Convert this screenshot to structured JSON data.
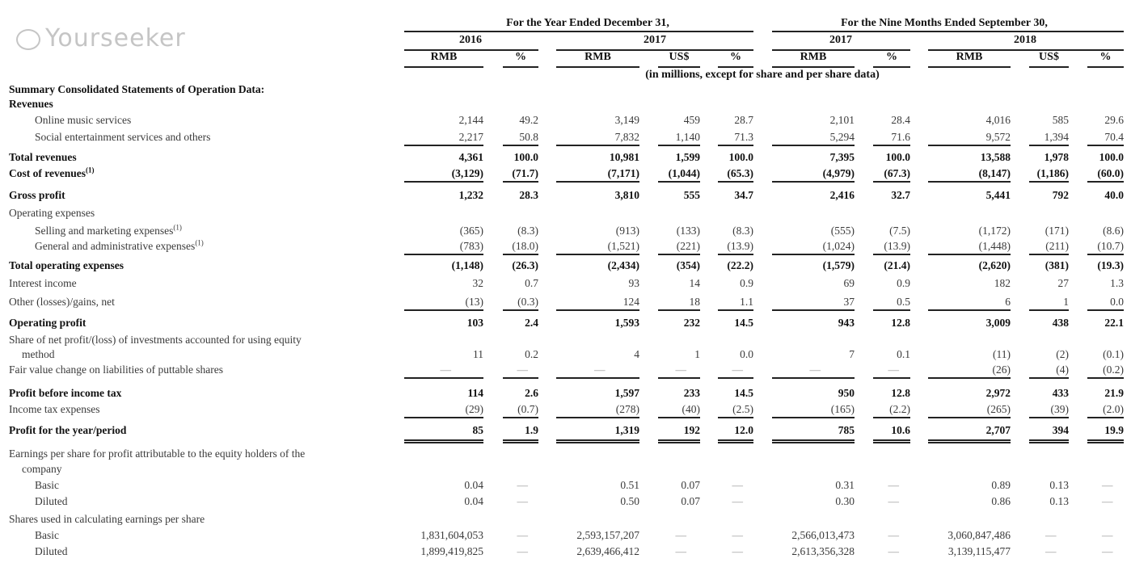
{
  "header": {
    "group_left": "For the Year Ended December 31,",
    "group_right": "For the Nine Months Ended September 30,",
    "years": [
      "2016",
      "2017",
      "2017",
      "2018"
    ],
    "columns": [
      "RMB",
      "%",
      "RMB",
      "US$",
      "%",
      "RMB",
      "%",
      "RMB",
      "US$",
      "%"
    ],
    "units_note": "(in millions, except for share and per share data)"
  },
  "rows": [
    {
      "label": "Summary Consolidated Statements of Operation Data:",
      "bold": true,
      "indent": 0,
      "values": null
    },
    {
      "label": "Revenues",
      "bold": true,
      "indent": 0,
      "values": null
    },
    {
      "label": "Online music services",
      "bold": false,
      "indent": 2,
      "values": [
        "2,144",
        "49.2",
        "3,149",
        "459",
        "28.7",
        "2,101",
        "28.4",
        "4,016",
        "585",
        "29.6"
      ]
    },
    {
      "label": "Social entertainment services and others",
      "bold": false,
      "indent": 2,
      "values": [
        "2,217",
        "50.8",
        "7,832",
        "1,140",
        "71.3",
        "5,294",
        "71.6",
        "9,572",
        "1,394",
        "70.4"
      ],
      "rule": "single"
    },
    {
      "label": "Total revenues",
      "bold": true,
      "indent": 0,
      "values": [
        "4,361",
        "100.0",
        "10,981",
        "1,599",
        "100.0",
        "7,395",
        "100.0",
        "13,588",
        "1,978",
        "100.0"
      ]
    },
    {
      "label": "Cost of revenues",
      "sup": "(1)",
      "bold": true,
      "indent": 0,
      "values": [
        "(3,129)",
        "(71.7)",
        "(7,171)",
        "(1,044)",
        "(65.3)",
        "(4,979)",
        "(67.3)",
        "(8,147)",
        "(1,186)",
        "(60.0)"
      ],
      "rule": "single"
    },
    {
      "label": "Gross profit",
      "bold": true,
      "indent": 0,
      "values": [
        "1,232",
        "28.3",
        "3,810",
        "555",
        "34.7",
        "2,416",
        "32.7",
        "5,441",
        "792",
        "40.0"
      ]
    },
    {
      "label": "Operating expenses",
      "bold": false,
      "indent": 0,
      "values": null
    },
    {
      "label": "Selling and marketing expenses",
      "sup": "(1)",
      "bold": false,
      "indent": 2,
      "values": [
        "(365)",
        "(8.3)",
        "(913)",
        "(133)",
        "(8.3)",
        "(555)",
        "(7.5)",
        "(1,172)",
        "(171)",
        "(8.6)"
      ]
    },
    {
      "label": "General and administrative expenses",
      "sup": "(1)",
      "bold": false,
      "indent": 2,
      "values": [
        "(783)",
        "(18.0)",
        "(1,521)",
        "(221)",
        "(13.9)",
        "(1,024)",
        "(13.9)",
        "(1,448)",
        "(211)",
        "(10.7)"
      ],
      "rule": "single"
    },
    {
      "label": "Total operating expenses",
      "bold": true,
      "indent": 0,
      "values": [
        "(1,148)",
        "(26.3)",
        "(2,434)",
        "(354)",
        "(22.2)",
        "(1,579)",
        "(21.4)",
        "(2,620)",
        "(381)",
        "(19.3)"
      ]
    },
    {
      "label": "Interest income",
      "bold": false,
      "indent": 0,
      "values": [
        "32",
        "0.7",
        "93",
        "14",
        "0.9",
        "69",
        "0.9",
        "182",
        "27",
        "1.3"
      ]
    },
    {
      "label": "Other (losses)/gains, net",
      "bold": false,
      "indent": 0,
      "values": [
        "(13)",
        "(0.3)",
        "124",
        "18",
        "1.1",
        "37",
        "0.5",
        "6",
        "1",
        "0.0"
      ],
      "rule": "single"
    },
    {
      "label": "Operating profit",
      "bold": true,
      "indent": 0,
      "values": [
        "103",
        "2.4",
        "1,593",
        "232",
        "14.5",
        "943",
        "12.8",
        "3,009",
        "438",
        "22.1"
      ]
    },
    {
      "label": "Share of net profit/(loss) of investments accounted for using equity",
      "label_cont": "method",
      "bold": false,
      "indent": 0,
      "values": [
        "11",
        "0.2",
        "4",
        "1",
        "0.0",
        "7",
        "0.1",
        "(11)",
        "(2)",
        "(0.1)"
      ]
    },
    {
      "label": "Fair value change on liabilities of puttable shares",
      "bold": false,
      "indent": 0,
      "values": [
        "—",
        "—",
        "—",
        "—",
        "—",
        "—",
        "—",
        "(26)",
        "(4)",
        "(0.2)"
      ],
      "rule": "single"
    },
    {
      "label": "Profit before income tax",
      "bold": true,
      "indent": 0,
      "values": [
        "114",
        "2.6",
        "1,597",
        "233",
        "14.5",
        "950",
        "12.8",
        "2,972",
        "433",
        "21.9"
      ]
    },
    {
      "label": "Income tax expenses",
      "bold": false,
      "indent": 0,
      "values": [
        "(29)",
        "(0.7)",
        "(278)",
        "(40)",
        "(2.5)",
        "(165)",
        "(2.2)",
        "(265)",
        "(39)",
        "(2.0)"
      ],
      "rule": "single"
    },
    {
      "label": "Profit for the year/period",
      "bold": true,
      "indent": 0,
      "values": [
        "85",
        "1.9",
        "1,319",
        "192",
        "12.0",
        "785",
        "10.6",
        "2,707",
        "394",
        "19.9"
      ],
      "rule": "double"
    },
    {
      "label": "Earnings per share for profit attributable to the equity holders of the",
      "label_cont": "company",
      "bold": false,
      "indent": 0,
      "values": null
    },
    {
      "label": "Basic",
      "bold": false,
      "indent": 2,
      "values": [
        "0.04",
        "—",
        "0.51",
        "0.07",
        "—",
        "0.31",
        "—",
        "0.89",
        "0.13",
        "—"
      ]
    },
    {
      "label": "Diluted",
      "bold": false,
      "indent": 2,
      "values": [
        "0.04",
        "—",
        "0.50",
        "0.07",
        "—",
        "0.30",
        "—",
        "0.86",
        "0.13",
        "—"
      ]
    },
    {
      "label": "Shares used in calculating earnings per share",
      "bold": false,
      "indent": 0,
      "values": null
    },
    {
      "label": "Basic",
      "bold": false,
      "indent": 2,
      "values": [
        "1,831,604,053",
        "—",
        "2,593,157,207",
        "—",
        "—",
        "2,566,013,473",
        "—",
        "3,060,847,486",
        "—",
        "—"
      ]
    },
    {
      "label": "Diluted",
      "bold": false,
      "indent": 2,
      "values": [
        "1,899,419,825",
        "—",
        "2,639,466,412",
        "—",
        "—",
        "2,613,356,328",
        "—",
        "3,139,115,477",
        "—",
        "—"
      ]
    }
  ],
  "watermark": "Yourseeker"
}
